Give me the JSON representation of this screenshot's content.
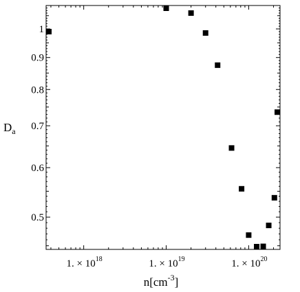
{
  "chart_data": {
    "type": "scatter",
    "title": "",
    "xlabel": {
      "base": "n[cm",
      "sup": "-3",
      "close": "]"
    },
    "ylabel": {
      "base": "D",
      "sub": "a"
    },
    "x_scale": "log",
    "y_scale": "log",
    "xlim": [
      3.5e+17,
      2.4e+20
    ],
    "ylim": [
      0.444,
      1.09
    ],
    "grid": false,
    "legend": "none",
    "marker_color": "#000000",
    "x_ticks": [
      {
        "value": 1e+18,
        "prefix": "1. × 10",
        "exp": "18"
      },
      {
        "value": 1e+19,
        "prefix": "1. × 10",
        "exp": "19"
      },
      {
        "value": 1e+20,
        "prefix": "1. × 10",
        "exp": "20"
      }
    ],
    "y_ticks": [
      {
        "value": 1.0,
        "label": "1"
      },
      {
        "value": 0.9,
        "label": "0.9"
      },
      {
        "value": 0.8,
        "label": "0.8"
      },
      {
        "value": 0.7,
        "label": "0.7"
      },
      {
        "value": 0.6,
        "label": "0.6"
      },
      {
        "value": 0.5,
        "label": "0.5"
      }
    ],
    "series": [
      {
        "points": [
          {
            "x": 3.6e+17,
            "y": 0.99
          },
          {
            "x": 1e+19,
            "y": 1.08
          },
          {
            "x": 2e+19,
            "y": 1.06
          },
          {
            "x": 3e+19,
            "y": 0.985
          },
          {
            "x": 4.2e+19,
            "y": 0.875
          },
          {
            "x": 6.2e+19,
            "y": 0.645
          },
          {
            "x": 8.2e+19,
            "y": 0.555
          },
          {
            "x": 1e+20,
            "y": 0.468
          },
          {
            "x": 1.25e+20,
            "y": 0.447
          },
          {
            "x": 1.5e+20,
            "y": 0.449
          },
          {
            "x": 1.75e+20,
            "y": 0.485
          },
          {
            "x": 2.05e+20,
            "y": 0.537
          },
          {
            "x": 2.35e+20,
            "y": 0.736
          }
        ]
      }
    ]
  }
}
